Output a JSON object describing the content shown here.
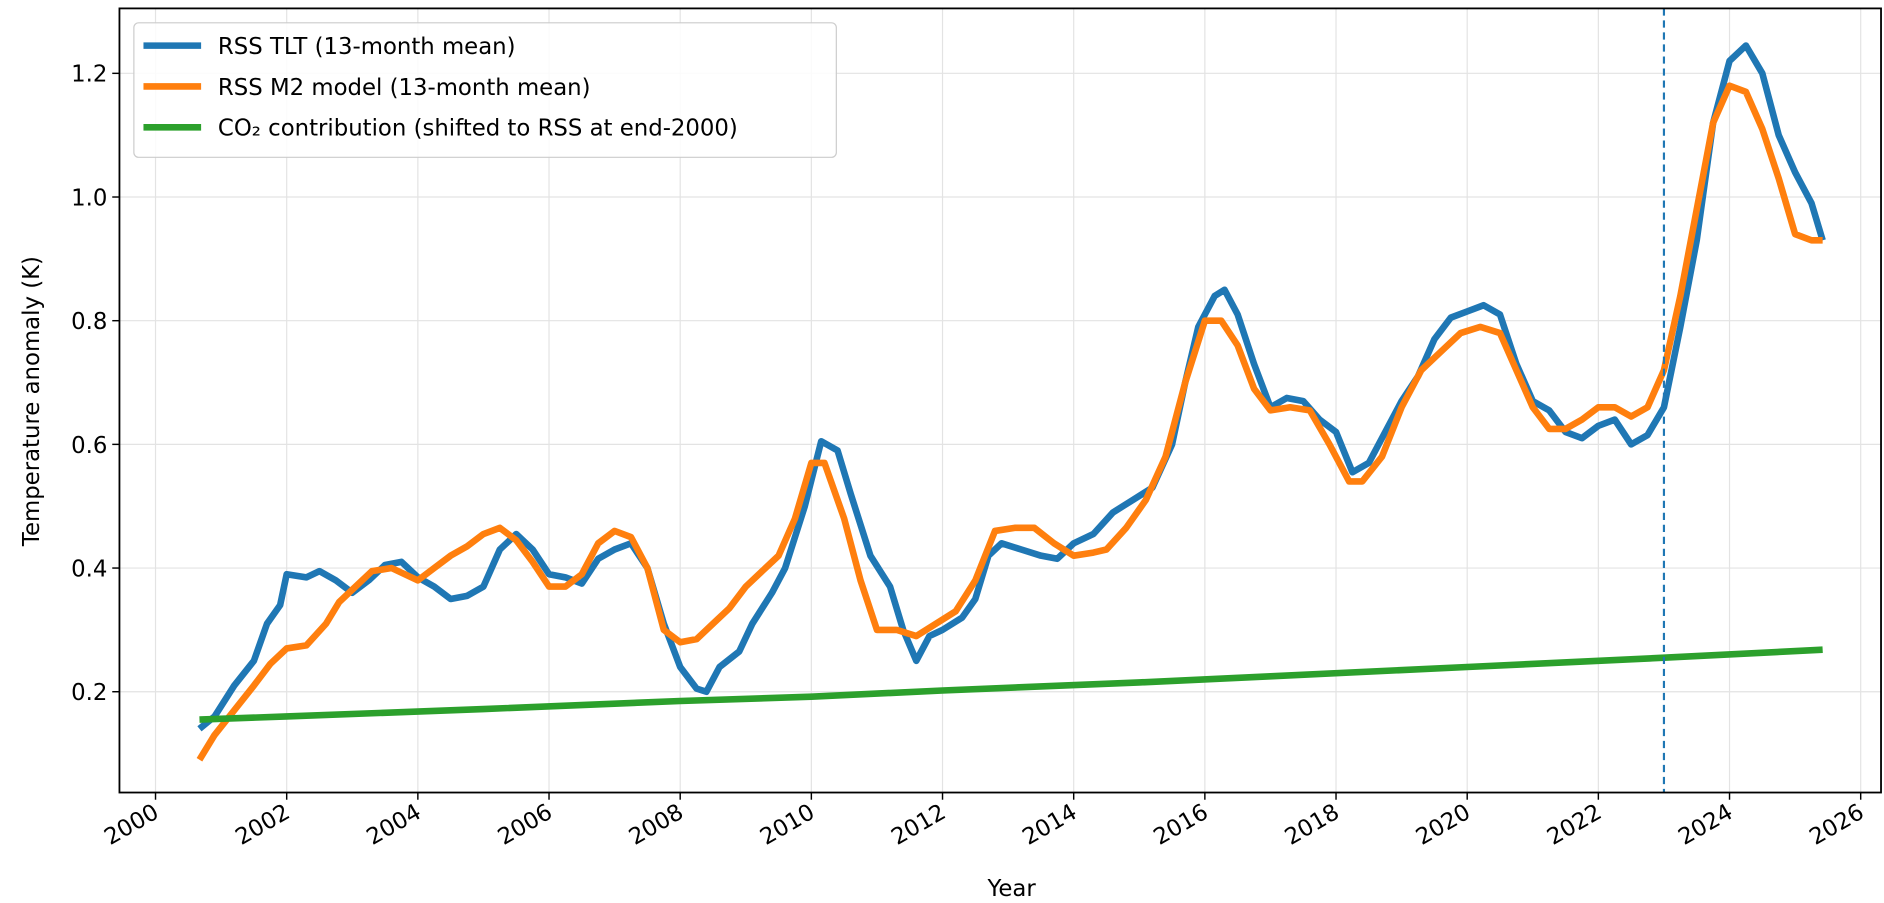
{
  "chart_data": {
    "type": "line",
    "xlabel": "Year",
    "ylabel": "Temperature anomaly (K)",
    "xlim": [
      1999.45,
      2026.31
    ],
    "ylim": [
      0.037,
      1.305
    ],
    "xticks": [
      2000,
      2002,
      2004,
      2006,
      2008,
      2010,
      2012,
      2014,
      2016,
      2018,
      2020,
      2022,
      2024,
      2026
    ],
    "yticks": [
      0.2,
      0.4,
      0.6,
      0.8,
      {
        "value": 1,
        "label": "1.0"
      },
      1.2
    ],
    "grid": true,
    "legend": "upper left",
    "vline": {
      "x": 2023.0,
      "color": "#1f77b4"
    },
    "series": [
      {
        "name": "RSS TLT (13-month mean)",
        "color": "#1f77b4",
        "x": [
          2000.67,
          2000.9,
          2001.2,
          2001.5,
          2001.7,
          2001.9,
          2002.0,
          2002.3,
          2002.5,
          2002.75,
          2003.0,
          2003.25,
          2003.5,
          2003.75,
          2004.0,
          2004.25,
          2004.5,
          2004.75,
          2005.0,
          2005.25,
          2005.5,
          2005.75,
          2006.0,
          2006.25,
          2006.5,
          2006.75,
          2007.0,
          2007.25,
          2007.5,
          2007.75,
          2008.0,
          2008.25,
          2008.4,
          2008.6,
          2008.9,
          2009.1,
          2009.4,
          2009.6,
          2009.9,
          2010.15,
          2010.4,
          2010.6,
          2010.9,
          2011.2,
          2011.4,
          2011.6,
          2011.8,
          2012.0,
          2012.3,
          2012.5,
          2012.7,
          2012.9,
          2013.2,
          2013.5,
          2013.75,
          2014.0,
          2014.3,
          2014.6,
          2014.9,
          2015.2,
          2015.5,
          2015.7,
          2015.9,
          2016.15,
          2016.3,
          2016.5,
          2016.75,
          2017.0,
          2017.25,
          2017.5,
          2017.75,
          2018.0,
          2018.25,
          2018.5,
          2018.75,
          2019.0,
          2019.25,
          2019.5,
          2019.75,
          2020.0,
          2020.25,
          2020.5,
          2020.75,
          2021.0,
          2021.25,
          2021.5,
          2021.75,
          2022.0,
          2022.25,
          2022.5,
          2022.75,
          2023.0,
          2023.25,
          2023.5,
          2023.75,
          2024.0,
          2024.25,
          2024.5,
          2024.75,
          2025.0,
          2025.25,
          2025.42
        ],
        "values": [
          0.14,
          0.16,
          0.21,
          0.25,
          0.31,
          0.34,
          0.39,
          0.385,
          0.395,
          0.38,
          0.36,
          0.38,
          0.405,
          0.41,
          0.385,
          0.37,
          0.35,
          0.355,
          0.37,
          0.43,
          0.455,
          0.43,
          0.39,
          0.385,
          0.375,
          0.415,
          0.43,
          0.44,
          0.4,
          0.31,
          0.24,
          0.205,
          0.2,
          0.24,
          0.265,
          0.31,
          0.36,
          0.4,
          0.5,
          0.605,
          0.59,
          0.52,
          0.42,
          0.37,
          0.3,
          0.25,
          0.29,
          0.3,
          0.32,
          0.35,
          0.42,
          0.44,
          0.43,
          0.42,
          0.415,
          0.44,
          0.455,
          0.49,
          0.51,
          0.53,
          0.6,
          0.7,
          0.79,
          0.84,
          0.85,
          0.81,
          0.73,
          0.66,
          0.675,
          0.67,
          0.64,
          0.62,
          0.555,
          0.57,
          0.62,
          0.67,
          0.71,
          0.77,
          0.805,
          0.815,
          0.825,
          0.81,
          0.73,
          0.67,
          0.655,
          0.62,
          0.61,
          0.63,
          0.64,
          0.6,
          0.615,
          0.66,
          0.79,
          0.93,
          1.12,
          1.22,
          1.245,
          1.2,
          1.1,
          1.04,
          0.99,
          0.93
        ]
      },
      {
        "name": "RSS M2 model (13-month mean)",
        "color": "#ff7f0e",
        "x": [
          2000.67,
          2000.9,
          2001.2,
          2001.5,
          2001.75,
          2002.0,
          2002.3,
          2002.6,
          2002.8,
          2003.0,
          2003.3,
          2003.6,
          2004.0,
          2004.25,
          2004.5,
          2004.75,
          2005.0,
          2005.25,
          2005.5,
          2005.75,
          2006.0,
          2006.25,
          2006.5,
          2006.75,
          2007.0,
          2007.25,
          2007.5,
          2007.75,
          2008.0,
          2008.25,
          2008.5,
          2008.75,
          2009.0,
          2009.25,
          2009.5,
          2009.75,
          2010.0,
          2010.2,
          2010.5,
          2010.75,
          2011.0,
          2011.3,
          2011.6,
          2011.9,
          2012.2,
          2012.5,
          2012.8,
          2013.1,
          2013.4,
          2013.7,
          2014.0,
          2014.3,
          2014.5,
          2014.8,
          2015.1,
          2015.4,
          2015.7,
          2016.0,
          2016.25,
          2016.5,
          2016.75,
          2017.0,
          2017.3,
          2017.6,
          2017.9,
          2018.2,
          2018.4,
          2018.7,
          2019.0,
          2019.3,
          2019.6,
          2019.9,
          2020.2,
          2020.5,
          2020.75,
          2021.0,
          2021.25,
          2021.5,
          2021.75,
          2022.0,
          2022.25,
          2022.5,
          2022.75,
          2023.0,
          2023.25,
          2023.5,
          2023.75,
          2024.0,
          2024.25,
          2024.5,
          2024.75,
          2025.0,
          2025.25,
          2025.42
        ],
        "values": [
          0.09,
          0.13,
          0.17,
          0.21,
          0.245,
          0.27,
          0.275,
          0.31,
          0.345,
          0.365,
          0.395,
          0.4,
          0.38,
          0.4,
          0.42,
          0.435,
          0.455,
          0.465,
          0.445,
          0.41,
          0.37,
          0.37,
          0.39,
          0.44,
          0.46,
          0.45,
          0.4,
          0.3,
          0.28,
          0.285,
          0.31,
          0.335,
          0.37,
          0.395,
          0.42,
          0.48,
          0.57,
          0.57,
          0.48,
          0.38,
          0.3,
          0.3,
          0.29,
          0.31,
          0.33,
          0.38,
          0.46,
          0.465,
          0.465,
          0.44,
          0.42,
          0.425,
          0.43,
          0.465,
          0.51,
          0.58,
          0.7,
          0.8,
          0.8,
          0.76,
          0.69,
          0.655,
          0.66,
          0.655,
          0.6,
          0.54,
          0.54,
          0.58,
          0.66,
          0.72,
          0.75,
          0.78,
          0.79,
          0.78,
          0.72,
          0.66,
          0.625,
          0.625,
          0.64,
          0.66,
          0.66,
          0.645,
          0.66,
          0.72,
          0.84,
          0.98,
          1.12,
          1.18,
          1.17,
          1.11,
          1.03,
          0.94,
          0.93,
          0.93
        ]
      },
      {
        "name": "CO₂ contribution (shifted to RSS at end-2000)",
        "color": "#2ca02c",
        "x": [
          2000.67,
          2002.0,
          2005.0,
          2008.0,
          2010.0,
          2012.0,
          2015.0,
          2017.0,
          2020.0,
          2023.0,
          2025.42
        ],
        "values": [
          0.155,
          0.16,
          0.172,
          0.185,
          0.192,
          0.202,
          0.215,
          0.225,
          0.24,
          0.255,
          0.268
        ]
      }
    ]
  }
}
